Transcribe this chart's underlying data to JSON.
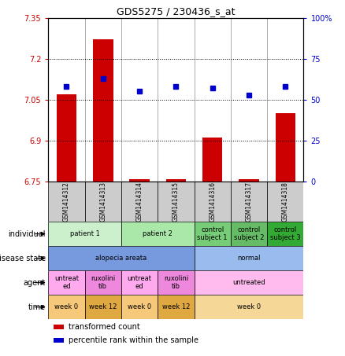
{
  "title": "GDS5275 / 230436_s_at",
  "samples": [
    "GSM1414312",
    "GSM1414313",
    "GSM1414314",
    "GSM1414315",
    "GSM1414316",
    "GSM1414317",
    "GSM1414318"
  ],
  "bar_values": [
    7.07,
    7.27,
    6.758,
    6.758,
    6.91,
    6.758,
    7.0
  ],
  "percentile_values": [
    58,
    63,
    55,
    58,
    57,
    53,
    58
  ],
  "ylim_left": [
    6.75,
    7.35
  ],
  "ylim_right": [
    0,
    100
  ],
  "yticks_left": [
    6.75,
    6.9,
    7.05,
    7.2,
    7.35
  ],
  "yticks_right": [
    0,
    25,
    50,
    75,
    100
  ],
  "ytick_labels_left": [
    "6.75",
    "6.9",
    "7.05",
    "7.2",
    "7.35"
  ],
  "ytick_labels_right": [
    "0",
    "25",
    "50",
    "75",
    "100%"
  ],
  "bar_color": "#cc0000",
  "dot_color": "#0000cc",
  "background_color": "#ffffff",
  "sample_box_color": "#cccccc",
  "annotation_rows": [
    {
      "label": "individual",
      "cells": [
        {
          "text": "patient 1",
          "span": 2,
          "color": "#ccf0cc"
        },
        {
          "text": "patient 2",
          "span": 2,
          "color": "#aae8aa"
        },
        {
          "text": "control\nsubject 1",
          "span": 1,
          "color": "#77cc77"
        },
        {
          "text": "control\nsubject 2",
          "span": 1,
          "color": "#66bb66"
        },
        {
          "text": "control\nsubject 3",
          "span": 1,
          "color": "#33aa33"
        }
      ]
    },
    {
      "label": "disease state",
      "cells": [
        {
          "text": "alopecia areata",
          "span": 4,
          "color": "#7799dd"
        },
        {
          "text": "normal",
          "span": 3,
          "color": "#99bbee"
        }
      ]
    },
    {
      "label": "agent",
      "cells": [
        {
          "text": "untreat\ned",
          "span": 1,
          "color": "#ffaaee"
        },
        {
          "text": "ruxolini\ntib",
          "span": 1,
          "color": "#ee88dd"
        },
        {
          "text": "untreat\ned",
          "span": 1,
          "color": "#ffaaee"
        },
        {
          "text": "ruxolini\ntib",
          "span": 1,
          "color": "#ee88dd"
        },
        {
          "text": "untreated",
          "span": 3,
          "color": "#ffbbee"
        }
      ]
    },
    {
      "label": "time",
      "cells": [
        {
          "text": "week 0",
          "span": 1,
          "color": "#f5c87a"
        },
        {
          "text": "week 12",
          "span": 1,
          "color": "#e0a840"
        },
        {
          "text": "week 0",
          "span": 1,
          "color": "#f5c87a"
        },
        {
          "text": "week 12",
          "span": 1,
          "color": "#e0a840"
        },
        {
          "text": "week 0",
          "span": 3,
          "color": "#f5d898"
        }
      ]
    }
  ],
  "legend": [
    {
      "label": "transformed count",
      "color": "#cc0000"
    },
    {
      "label": "percentile rank within the sample",
      "color": "#0000cc"
    }
  ]
}
